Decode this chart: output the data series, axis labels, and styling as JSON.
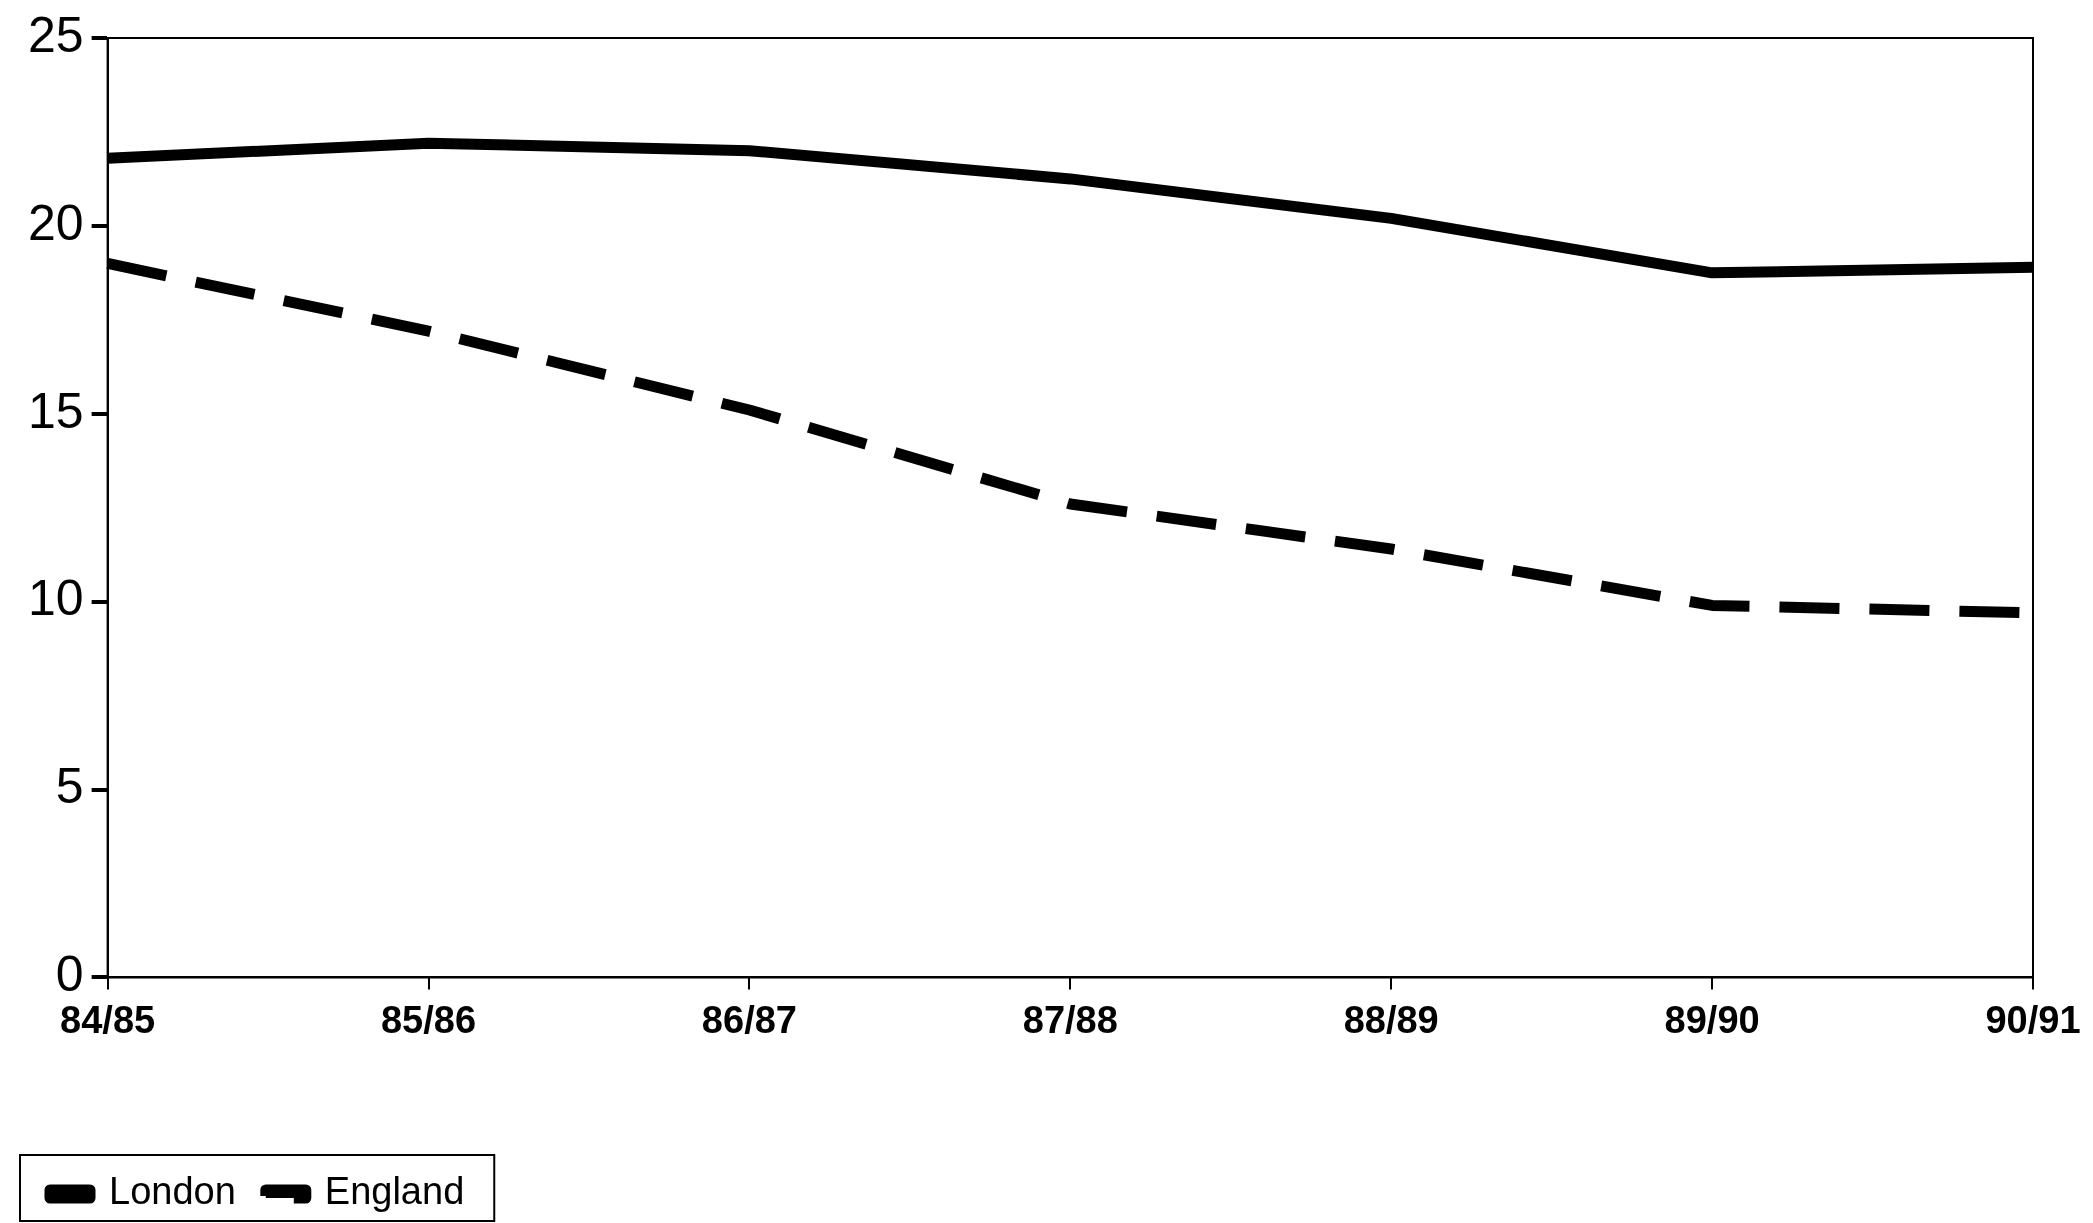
{
  "chart_data": {
    "type": "line",
    "categories": [
      "84/85",
      "85/86",
      "86/87",
      "87/88",
      "88/89",
      "89/90",
      "90/91"
    ],
    "series": [
      {
        "name": "London",
        "color": "#000000",
        "line_style": "solid",
        "values": [
          21.8,
          22.2,
          22.0,
          21.25,
          20.2,
          18.75,
          18.9
        ]
      },
      {
        "name": "England",
        "color": "#000000",
        "line_style": "dashed",
        "values": [
          19.0,
          17.2,
          15.1,
          12.6,
          11.4,
          9.9,
          9.7
        ]
      }
    ],
    "ylim": [
      0,
      25
    ],
    "yticks": [
      0,
      5,
      10,
      15,
      20,
      25
    ],
    "grid": false,
    "legend": "bottom left",
    "marker": "none"
  }
}
